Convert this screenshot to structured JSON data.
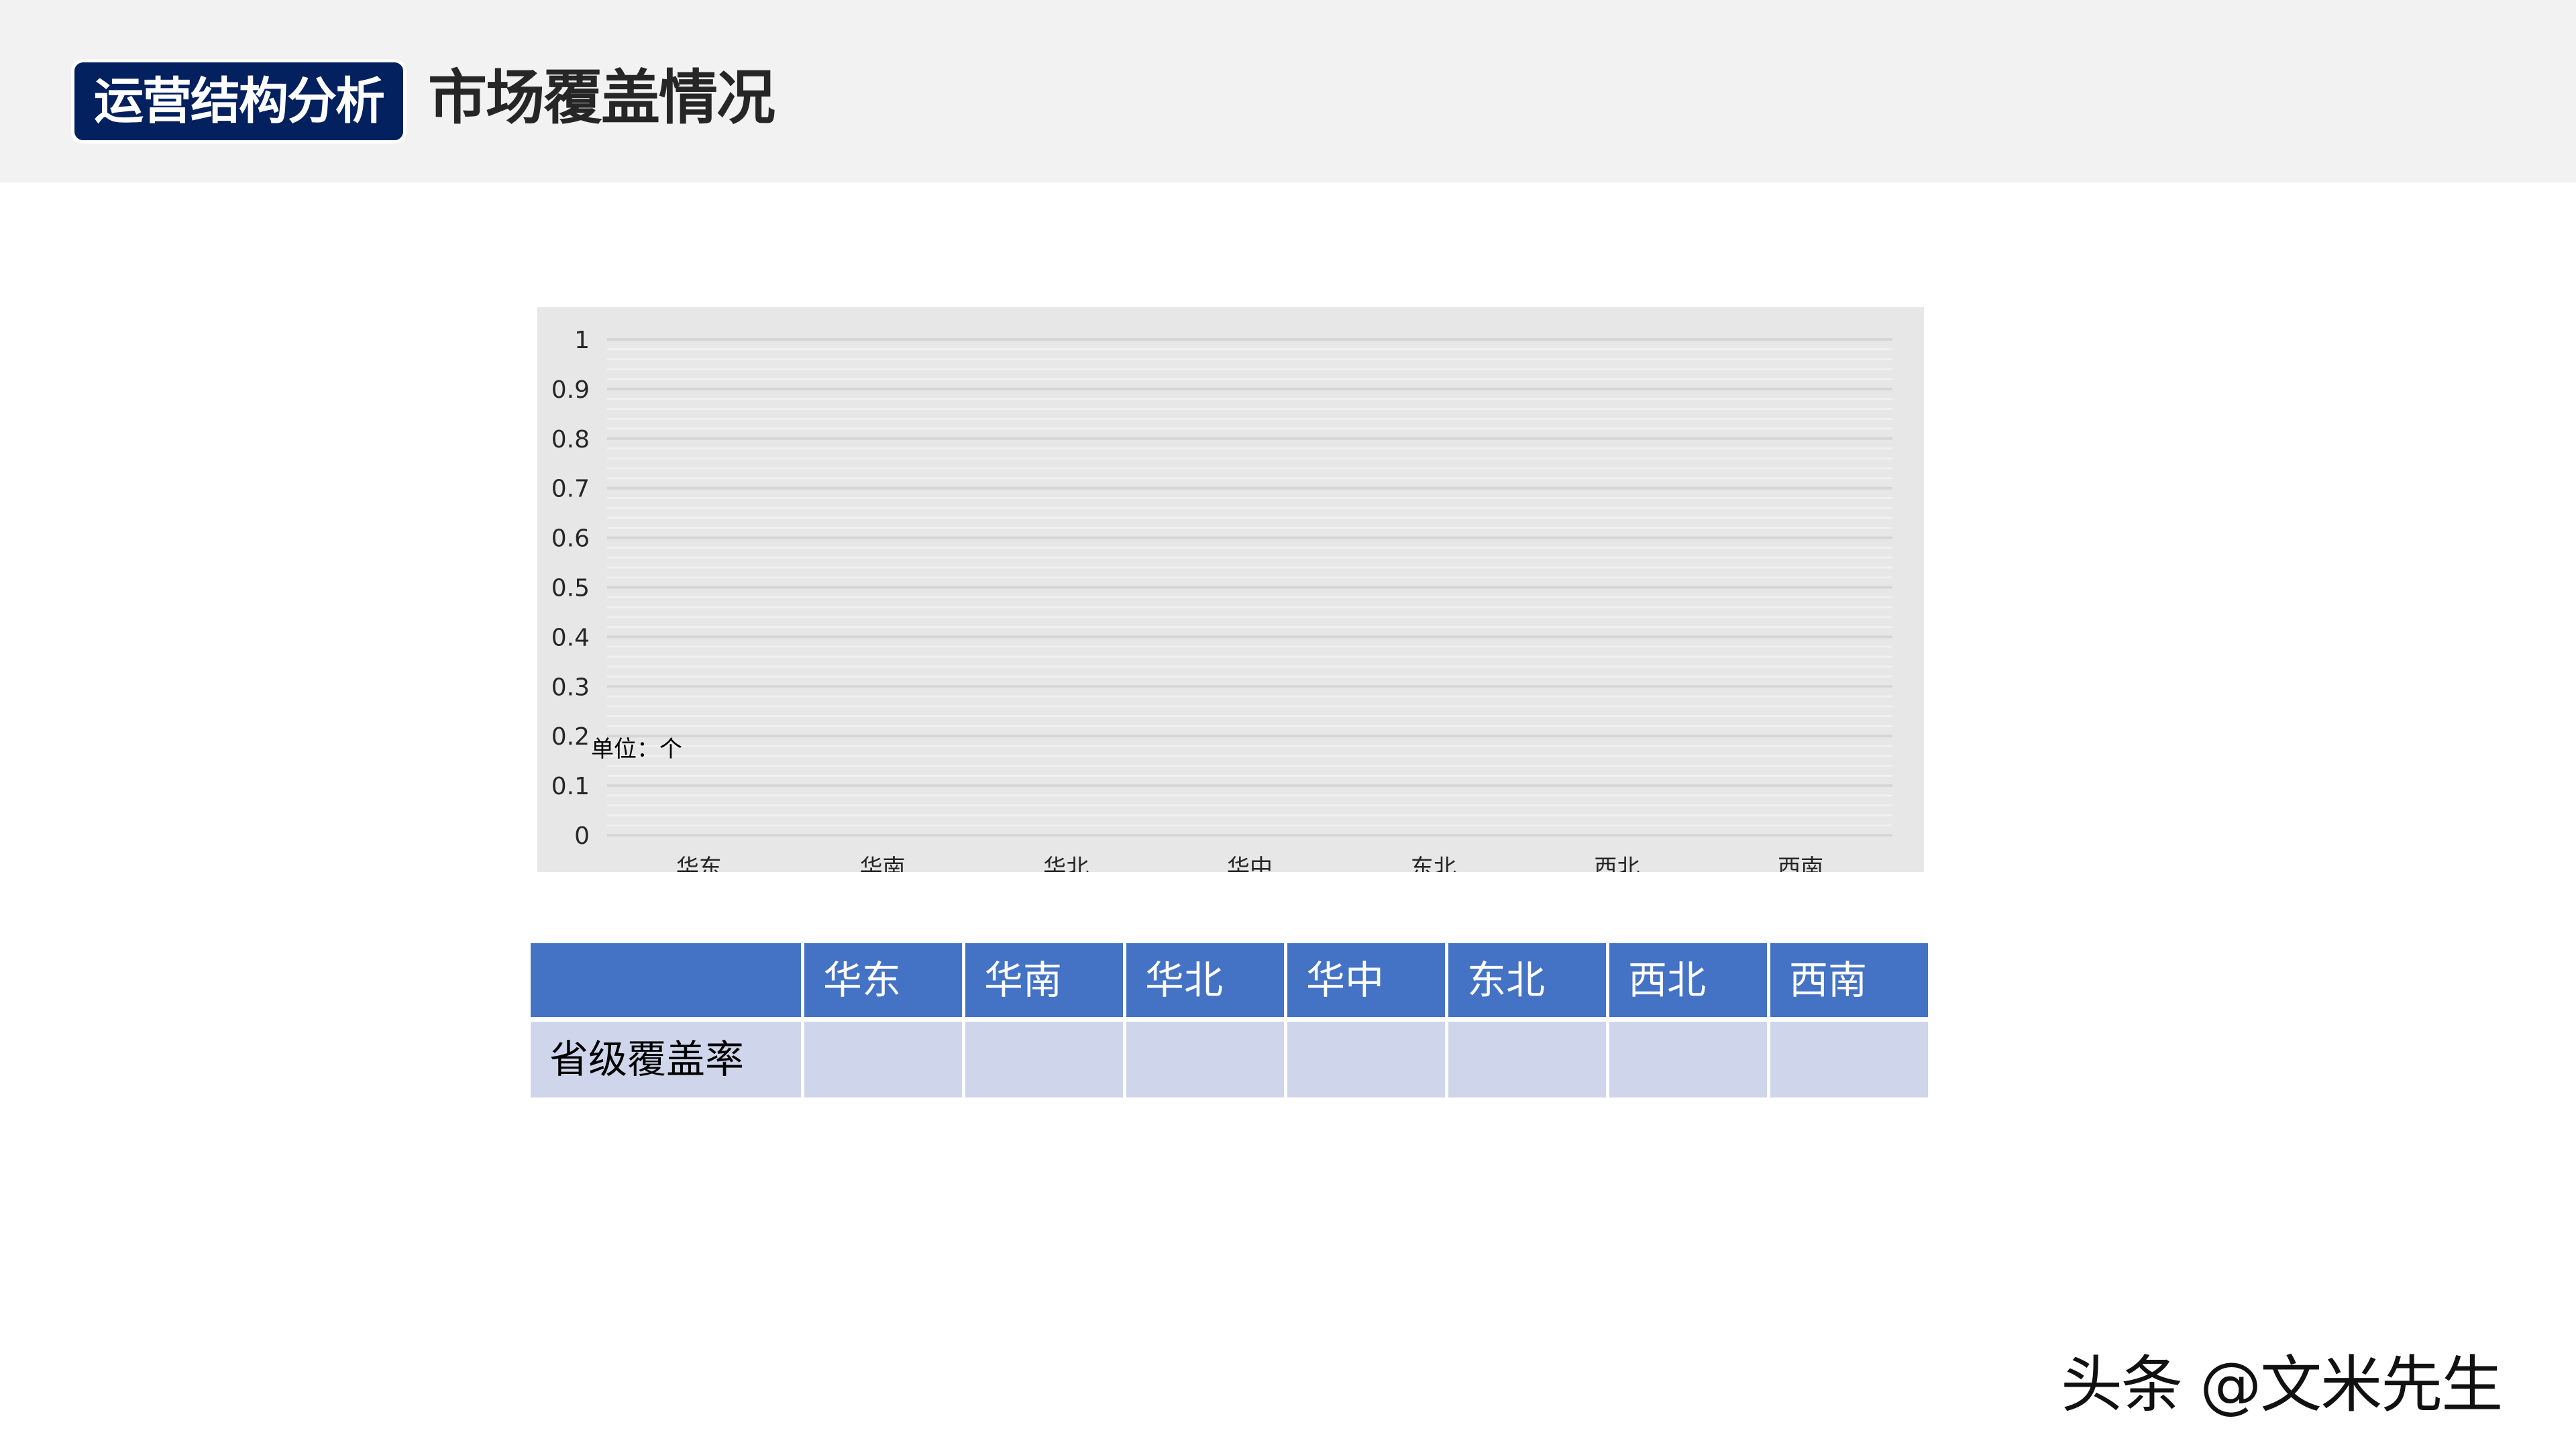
{
  "header": {
    "badge": "运营结构分析",
    "title": "市场覆盖情况"
  },
  "chart_data": {
    "type": "bar",
    "categories": [
      "华东",
      "华南",
      "华北",
      "华中",
      "东北",
      "西北",
      "西南"
    ],
    "values": [
      null,
      null,
      null,
      null,
      null,
      null,
      null
    ],
    "yticks": [
      "0",
      "0.1",
      "0.2",
      "0.3",
      "0.4",
      "0.5",
      "0.6",
      "0.7",
      "0.8",
      "0.9",
      "1"
    ],
    "ylim": [
      0,
      1
    ],
    "annotation": "单位：个",
    "grid": true,
    "colors": {
      "background": "#e7e7e7",
      "major_grid": "#d6d6d6",
      "minor_grid": "#f0f0f0"
    }
  },
  "table": {
    "headers": [
      "",
      "华东",
      "华南",
      "华北",
      "华中",
      "东北",
      "西北",
      "西南"
    ],
    "rows": [
      {
        "label": "省级覆盖率",
        "values": [
          "",
          "",
          "",
          "",
          "",
          "",
          ""
        ]
      }
    ],
    "colors": {
      "header": "#4472c4",
      "body": "#cfd5ea"
    }
  },
  "watermark": "头条 @文米先生"
}
